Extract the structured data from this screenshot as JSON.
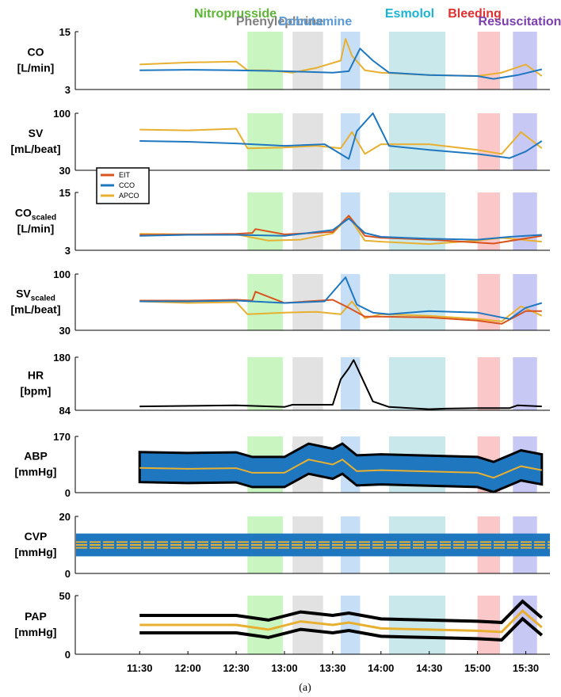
{
  "chart_data": {
    "type": "line",
    "caption": "(a)",
    "x_axis": {
      "ticks": [
        "11:30",
        "12:00",
        "12:30",
        "13:00",
        "13:30",
        "14:00",
        "14:30",
        "15:00",
        "15:30"
      ],
      "range_minutes": [
        650,
        945
      ]
    },
    "events": [
      {
        "label": "Nitroprusside",
        "start": "12:37",
        "end": "12:59",
        "color": "#5cb535",
        "fill": "#c8f5c0"
      },
      {
        "label": "Phenylephrine",
        "start": "13:05",
        "end": "13:24",
        "color": "#808080",
        "fill": "#e2e2e2"
      },
      {
        "label": "Dobutamine",
        "start": "13:35",
        "end": "13:47",
        "color": "#5b9bd5",
        "fill": "#c6def6"
      },
      {
        "label": "Esmolol",
        "start": "14:05",
        "end": "14:40",
        "color": "#1ab3d4",
        "fill": "#c8e8ec"
      },
      {
        "label": "Bleeding",
        "start": "15:00",
        "end": "15:14",
        "color": "#e03030",
        "fill": "#fac8c8"
      },
      {
        "label": "Resuscitation",
        "start": "15:22",
        "end": "15:37",
        "color": "#7b3fb0",
        "fill": "#c8c8f5"
      }
    ],
    "legend": {
      "entries": [
        "EIT",
        "CCO",
        "APCO"
      ],
      "colors": [
        "#d9541e",
        "#1f77c0",
        "#e8b030"
      ],
      "placement": "inside panel 2, upper-left"
    },
    "panels": [
      {
        "ylabel": [
          "CO",
          "[L/min]"
        ],
        "sub": "",
        "ylim": [
          3,
          15
        ],
        "ticks": [
          "15",
          "3"
        ],
        "series": [
          {
            "name": "APCO",
            "color": "#e8b030",
            "x": [
              "11:30",
              "12:00",
              "12:30",
              "12:37",
              "12:50",
              "13:05",
              "13:20",
              "13:35",
              "13:38",
              "13:42",
              "13:50",
              "14:00",
              "14:30",
              "15:00",
              "15:15",
              "15:30",
              "15:40"
            ],
            "y": [
              8.2,
              8.6,
              8.8,
              7.0,
              7.0,
              6.5,
              7.5,
              9.0,
              13.5,
              10.0,
              7.0,
              6.5,
              6.0,
              5.8,
              6.5,
              8.2,
              5.8
            ]
          },
          {
            "name": "CCO",
            "color": "#1f77c0",
            "x": [
              "11:30",
              "12:00",
              "12:30",
              "13:00",
              "13:30",
              "13:40",
              "13:47",
              "13:55",
              "14:05",
              "14:30",
              "15:00",
              "15:10",
              "15:25",
              "15:40"
            ],
            "y": [
              7.0,
              7.1,
              7.0,
              6.8,
              6.5,
              6.8,
              11.5,
              9.0,
              6.5,
              6.0,
              5.8,
              5.2,
              6.0,
              7.2
            ]
          }
        ]
      },
      {
        "ylabel": [
          "SV",
          "[mL/beat]"
        ],
        "sub": "",
        "ylim": [
          30,
          100
        ],
        "ticks": [
          "100",
          "30"
        ],
        "series": [
          {
            "name": "APCO",
            "color": "#e8b030",
            "x": [
              "11:30",
              "12:00",
              "12:30",
              "12:37",
              "13:00",
              "13:20",
              "13:35",
              "13:42",
              "13:50",
              "14:00",
              "14:30",
              "15:00",
              "15:15",
              "15:27",
              "15:40"
            ],
            "y": [
              80,
              79,
              81,
              57,
              58,
              60,
              57,
              77,
              50,
              62,
              62,
              55,
              50,
              77,
              57
            ]
          },
          {
            "name": "CCO",
            "color": "#1f77c0",
            "x": [
              "11:30",
              "12:00",
              "12:30",
              "13:00",
              "13:25",
              "13:40",
              "13:45",
              "13:55",
              "14:05",
              "14:30",
              "15:00",
              "15:20",
              "15:30",
              "15:40"
            ],
            "y": [
              66,
              65,
              63,
              60,
              62,
              44,
              78,
              100,
              60,
              55,
              50,
              45,
              53,
              66
            ]
          }
        ]
      },
      {
        "ylabel": [
          "CO",
          "[L/min]"
        ],
        "sub": "scaled",
        "ylim": [
          3,
          15
        ],
        "ticks": [
          "15",
          "3"
        ],
        "series": [
          {
            "name": "APCO",
            "color": "#e8b030",
            "x": [
              "11:30",
              "12:00",
              "12:30",
              "12:50",
              "13:10",
              "13:30",
              "13:40",
              "13:50",
              "14:00",
              "14:30",
              "15:00",
              "15:15",
              "15:40"
            ],
            "y": [
              6.4,
              6.3,
              6.3,
              5.0,
              5.2,
              6.5,
              10.0,
              5.0,
              4.8,
              4.3,
              5.0,
              5.6,
              4.8
            ]
          },
          {
            "name": "EIT",
            "color": "#d9541e",
            "x": [
              "11:30",
              "12:00",
              "12:30",
              "12:40",
              "12:42",
              "13:00",
              "13:30",
              "13:40",
              "13:50",
              "14:00",
              "14:30",
              "15:00",
              "15:10",
              "15:40"
            ],
            "y": [
              6.2,
              6.3,
              6.4,
              6.6,
              7.4,
              6.3,
              6.8,
              10.2,
              6.0,
              5.6,
              5.2,
              4.6,
              4.4,
              6.0
            ]
          },
          {
            "name": "CCO",
            "color": "#1f77c0",
            "x": [
              "11:30",
              "12:00",
              "12:30",
              "13:00",
              "13:30",
              "13:40",
              "13:50",
              "14:00",
              "14:30",
              "15:00",
              "15:20",
              "15:40"
            ],
            "y": [
              6.0,
              6.2,
              6.2,
              6.0,
              7.2,
              9.6,
              6.6,
              5.8,
              5.4,
              5.2,
              5.8,
              6.2
            ]
          }
        ]
      },
      {
        "ylabel": [
          "SV",
          "[mL/beat]"
        ],
        "sub": "scaled",
        "ylim": [
          30,
          100
        ],
        "ticks": [
          "100",
          "30"
        ],
        "series": [
          {
            "name": "APCO",
            "color": "#e8b030",
            "x": [
              "11:30",
              "12:00",
              "12:30",
              "12:37",
              "13:00",
              "13:20",
              "13:35",
              "13:42",
              "13:50",
              "14:00",
              "14:30",
              "15:00",
              "15:15",
              "15:27",
              "15:40"
            ],
            "y": [
              66,
              64,
              65,
              50,
              52,
              53,
              50,
              66,
              45,
              50,
              48,
              44,
              41,
              60,
              48
            ]
          },
          {
            "name": "EIT",
            "color": "#d9541e",
            "x": [
              "11:30",
              "12:00",
              "12:30",
              "12:40",
              "12:42",
              "13:00",
              "13:30",
              "13:40",
              "13:50",
              "14:00",
              "14:30",
              "15:00",
              "15:15",
              "15:30",
              "15:40"
            ],
            "y": [
              67,
              67,
              68,
              67,
              78,
              64,
              68,
              58,
              47,
              47,
              46,
              42,
              38,
              54,
              54
            ]
          },
          {
            "name": "CCO",
            "color": "#1f77c0",
            "x": [
              "11:30",
              "12:00",
              "12:30",
              "13:00",
              "13:25",
              "13:38",
              "13:45",
              "13:55",
              "14:05",
              "14:30",
              "15:00",
              "15:20",
              "15:30",
              "15:40"
            ],
            "y": [
              66,
              66,
              67,
              64,
              66,
              96,
              62,
              52,
              50,
              54,
              52,
              44,
              58,
              64
            ]
          }
        ]
      },
      {
        "ylabel": [
          "HR",
          "[bpm]"
        ],
        "sub": "",
        "ylim": [
          84,
          180
        ],
        "ticks": [
          "180",
          "84"
        ],
        "series": [
          {
            "name": "HR",
            "color": "#000000",
            "x": [
              "11:30",
              "12:30",
              "13:00",
              "13:05",
              "13:30",
              "13:35",
              "13:40",
              "13:43",
              "13:47",
              "13:55",
              "14:05",
              "14:30",
              "14:40",
              "15:00",
              "15:20",
              "15:25",
              "15:40"
            ],
            "y": [
              91,
              93,
              90,
              94,
              94,
              140,
              160,
              175,
              150,
              100,
              90,
              86,
              87,
              88,
              88,
              93,
              91
            ]
          }
        ]
      },
      {
        "ylabel": [
          "ABP",
          "[mmHg]"
        ],
        "sub": "",
        "ylim": [
          0,
          170
        ],
        "ticks": [
          "170",
          "0"
        ],
        "series": [
          {
            "name": "ABP",
            "color": "#1f77c0",
            "x": [
              "11:30",
              "12:00",
              "12:30",
              "12:40",
              "13:00",
              "13:15",
              "13:30",
              "13:36",
              "13:45",
              "14:00",
              "14:30",
              "15:00",
              "15:10",
              "15:27",
              "15:40"
            ],
            "y": [
              75,
              72,
              74,
              60,
              60,
              100,
              85,
              100,
              65,
              68,
              64,
              60,
              45,
              80,
              68
            ]
          }
        ]
      },
      {
        "ylabel": [
          "CVP",
          "[mmHg]"
        ],
        "sub": "",
        "ylim": [
          0,
          20
        ],
        "ticks": [
          "20",
          "0"
        ],
        "series": [
          {
            "name": "CVP",
            "color": "#1f77c0",
            "x": [
              "11:30",
              "12:30",
              "13:00",
              "13:30",
              "14:00",
              "14:30",
              "15:00",
              "15:30",
              "15:40"
            ],
            "y": [
              10,
              10,
              10,
              10,
              10,
              10,
              10,
              10,
              10
            ]
          }
        ]
      },
      {
        "ylabel": [
          "PAP",
          "[mmHg]"
        ],
        "sub": "",
        "ylim": [
          0,
          50
        ],
        "ticks": [
          "50",
          "0"
        ],
        "series": [
          {
            "name": "PAP",
            "color": "#e8b030",
            "x": [
              "11:30",
              "12:30",
              "12:50",
              "13:10",
              "13:30",
              "13:40",
              "14:00",
              "14:30",
              "15:00",
              "15:15",
              "15:28",
              "15:40"
            ],
            "y": [
              25,
              25,
              21,
              28,
              25,
              27,
              22,
              21,
              20,
              19,
              37,
              23
            ]
          }
        ]
      }
    ]
  }
}
